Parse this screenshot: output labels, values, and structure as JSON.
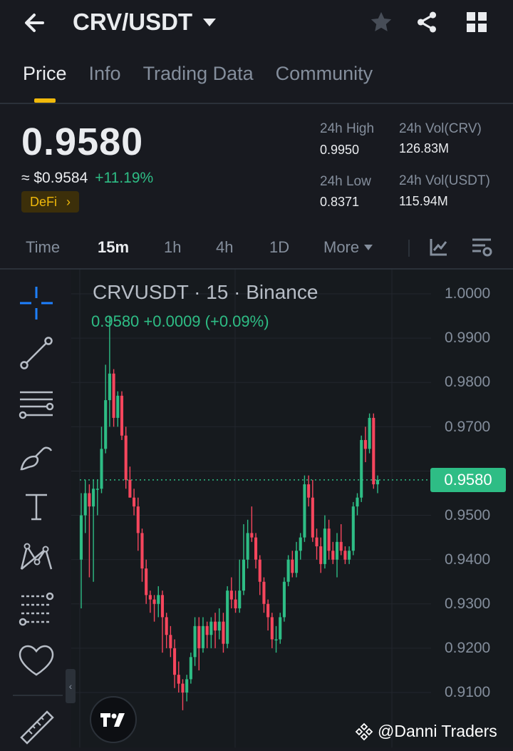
{
  "header": {
    "pair": "CRV/USDT",
    "icons": [
      "back-arrow-icon",
      "dropdown-caret-icon",
      "star-icon",
      "share-icon",
      "grid-menu-icon"
    ]
  },
  "tabs": [
    {
      "label": "Price",
      "active": true
    },
    {
      "label": "Info",
      "active": false
    },
    {
      "label": "Trading Data",
      "active": false
    },
    {
      "label": "Community",
      "active": false
    }
  ],
  "summary": {
    "last_price": "0.9580",
    "usd_price": "≈ $0.9584",
    "change": "+11.19%",
    "tag": "DeFi",
    "tag_arrow": "›",
    "high_label": "24h High",
    "high_value": "0.9950",
    "low_label": "24h Low",
    "low_value": "0.8371",
    "vol_base_label": "24h Vol(CRV)",
    "vol_base_value": "126.83M",
    "vol_quote_label": "24h Vol(USDT)",
    "vol_quote_value": "115.94M"
  },
  "timeframes": [
    "Time",
    "15m",
    "1h",
    "4h",
    "1D",
    "More"
  ],
  "active_timeframe": "15m",
  "chart": {
    "title": "CRVUSDT · 15 · Binance",
    "legend": "0.9580  +0.0009 (+0.09%)",
    "current_price_tag": "0.9580",
    "y_labels": [
      "1.0000",
      "0.9900",
      "0.9800",
      "0.9700",
      "0.9500",
      "0.9400",
      "0.9300",
      "0.9200",
      "0.9100"
    ]
  },
  "chart_data": {
    "type": "candlestick",
    "ylim": [
      0.903,
      1.0
    ],
    "current": 0.958,
    "candles": [
      [
        0.94,
        0.95,
        0.929,
        0.955
      ],
      [
        0.95,
        0.955,
        0.946,
        0.958
      ],
      [
        0.955,
        0.952,
        0.936,
        0.957
      ],
      [
        0.952,
        0.956,
        0.935,
        0.958
      ],
      [
        0.956,
        0.956,
        0.95,
        0.958
      ],
      [
        0.956,
        0.965,
        0.955,
        0.97
      ],
      [
        0.965,
        0.976,
        0.964,
        0.984
      ],
      [
        0.976,
        0.982,
        0.97,
        0.995
      ],
      [
        0.982,
        0.972,
        0.97,
        0.983
      ],
      [
        0.972,
        0.977,
        0.97,
        0.978
      ],
      [
        0.977,
        0.968,
        0.967,
        0.978
      ],
      [
        0.968,
        0.958,
        0.956,
        0.97
      ],
      [
        0.958,
        0.954,
        0.954,
        0.961
      ],
      [
        0.954,
        0.952,
        0.95,
        0.956
      ],
      [
        0.952,
        0.946,
        0.942,
        0.954
      ],
      [
        0.946,
        0.938,
        0.935,
        0.947
      ],
      [
        0.938,
        0.932,
        0.93,
        0.94
      ],
      [
        0.932,
        0.931,
        0.928,
        0.933
      ],
      [
        0.931,
        0.93,
        0.926,
        0.932
      ],
      [
        0.93,
        0.932,
        0.927,
        0.934
      ],
      [
        0.932,
        0.927,
        0.919,
        0.933
      ],
      [
        0.927,
        0.923,
        0.92,
        0.928
      ],
      [
        0.923,
        0.92,
        0.918,
        0.925
      ],
      [
        0.92,
        0.914,
        0.911,
        0.922
      ],
      [
        0.914,
        0.912,
        0.91,
        0.917
      ],
      [
        0.912,
        0.91,
        0.906,
        0.913
      ],
      [
        0.91,
        0.913,
        0.908,
        0.914
      ],
      [
        0.913,
        0.918,
        0.912,
        0.919
      ],
      [
        0.918,
        0.925,
        0.916,
        0.927
      ],
      [
        0.925,
        0.92,
        0.915,
        0.927
      ],
      [
        0.92,
        0.925,
        0.919,
        0.927
      ],
      [
        0.925,
        0.923,
        0.92,
        0.926
      ],
      [
        0.923,
        0.926,
        0.92,
        0.927
      ],
      [
        0.926,
        0.924,
        0.92,
        0.928
      ],
      [
        0.924,
        0.926,
        0.922,
        0.929
      ],
      [
        0.926,
        0.921,
        0.919,
        0.928
      ],
      [
        0.921,
        0.933,
        0.92,
        0.934
      ],
      [
        0.933,
        0.931,
        0.929,
        0.936
      ],
      [
        0.931,
        0.929,
        0.928,
        0.933
      ],
      [
        0.929,
        0.933,
        0.928,
        0.94
      ],
      [
        0.933,
        0.94,
        0.932,
        0.948
      ],
      [
        0.94,
        0.946,
        0.938,
        0.949
      ],
      [
        0.946,
        0.945,
        0.944,
        0.952
      ],
      [
        0.945,
        0.94,
        0.938,
        0.946
      ],
      [
        0.94,
        0.935,
        0.932,
        0.941
      ],
      [
        0.935,
        0.93,
        0.928,
        0.936
      ],
      [
        0.93,
        0.927,
        0.924,
        0.931
      ],
      [
        0.927,
        0.922,
        0.92,
        0.928
      ],
      [
        0.922,
        0.922,
        0.919,
        0.925
      ],
      [
        0.922,
        0.927,
        0.921,
        0.928
      ],
      [
        0.927,
        0.935,
        0.926,
        0.936
      ],
      [
        0.935,
        0.94,
        0.934,
        0.941
      ],
      [
        0.94,
        0.937,
        0.936,
        0.942
      ],
      [
        0.937,
        0.942,
        0.936,
        0.944
      ],
      [
        0.942,
        0.945,
        0.94,
        0.946
      ],
      [
        0.945,
        0.957,
        0.944,
        0.959
      ],
      [
        0.957,
        0.954,
        0.952,
        0.959
      ],
      [
        0.954,
        0.945,
        0.944,
        0.958
      ],
      [
        0.945,
        0.943,
        0.94,
        0.947
      ],
      [
        0.943,
        0.939,
        0.937,
        0.945
      ],
      [
        0.939,
        0.947,
        0.938,
        0.95
      ],
      [
        0.947,
        0.942,
        0.94,
        0.949
      ],
      [
        0.942,
        0.94,
        0.939,
        0.944
      ],
      [
        0.94,
        0.944,
        0.936,
        0.946
      ],
      [
        0.944,
        0.942,
        0.941,
        0.948
      ],
      [
        0.942,
        0.94,
        0.939,
        0.943
      ],
      [
        0.94,
        0.942,
        0.939,
        0.943
      ],
      [
        0.942,
        0.952,
        0.941,
        0.953
      ],
      [
        0.952,
        0.954,
        0.95,
        0.955
      ],
      [
        0.954,
        0.967,
        0.953,
        0.968
      ],
      [
        0.967,
        0.965,
        0.962,
        0.97
      ],
      [
        0.965,
        0.972,
        0.964,
        0.973
      ],
      [
        0.972,
        0.957,
        0.956,
        0.973
      ],
      [
        0.957,
        0.958,
        0.955,
        0.959
      ]
    ]
  },
  "watermark": "@Danni Traders",
  "colors": {
    "up": "#2ebd85",
    "down": "#f6465d",
    "accent": "#f0b90b",
    "bg": "#181a20"
  }
}
